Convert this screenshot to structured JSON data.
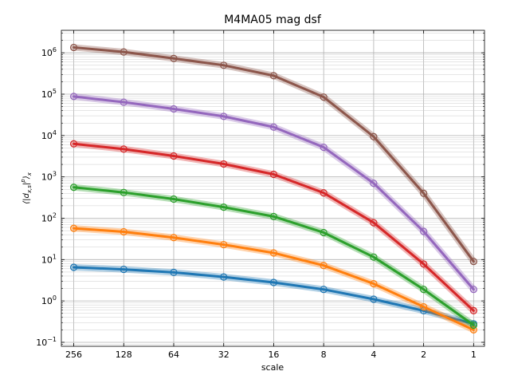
{
  "chart_data": {
    "type": "line",
    "title": "M4MA05 mag dsf",
    "xlabel": "scale",
    "ylabel": "⟨|d_{x,s}|^p⟩_x",
    "x_scale": "log",
    "x_inverted": true,
    "y_scale": "log",
    "xlim": [
      304,
      0.86
    ],
    "ylim": [
      0.08,
      3500000
    ],
    "grid": true,
    "legend": "none",
    "x_ticks": [
      {
        "value": 256,
        "label": "256"
      },
      {
        "value": 128,
        "label": "128"
      },
      {
        "value": 64,
        "label": "64"
      },
      {
        "value": 32,
        "label": "32"
      },
      {
        "value": 16,
        "label": "16"
      },
      {
        "value": 8,
        "label": "8"
      },
      {
        "value": 4,
        "label": "4"
      },
      {
        "value": 2,
        "label": "2"
      },
      {
        "value": 1,
        "label": "1"
      }
    ],
    "y_ticks": [
      {
        "value": 0.1,
        "base": "10",
        "exp": "−1"
      },
      {
        "value": 1,
        "base": "10",
        "exp": "0"
      },
      {
        "value": 10,
        "base": "10",
        "exp": "1"
      },
      {
        "value": 100,
        "base": "10",
        "exp": "2"
      },
      {
        "value": 1000,
        "base": "10",
        "exp": "3"
      },
      {
        "value": 10000,
        "base": "10",
        "exp": "4"
      },
      {
        "value": 100000,
        "base": "10",
        "exp": "5"
      },
      {
        "value": 1000000,
        "base": "10",
        "exp": "6"
      }
    ],
    "x": [
      256,
      128,
      64,
      32,
      16,
      8,
      4,
      2,
      1
    ],
    "series": [
      {
        "color": "#1f77b4",
        "values": [
          6.5,
          5.8,
          4.9,
          3.8,
          2.8,
          1.9,
          1.1,
          0.58,
          0.28
        ]
      },
      {
        "color": "#ff7f0e",
        "values": [
          57,
          47,
          34,
          23,
          14.5,
          7.2,
          2.6,
          0.72,
          0.2
        ]
      },
      {
        "color": "#2ca02c",
        "values": [
          560,
          420,
          290,
          185,
          110,
          45,
          11.5,
          1.9,
          0.26
        ]
      },
      {
        "color": "#d62728",
        "values": [
          6300,
          4700,
          3200,
          2050,
          1150,
          410,
          78,
          7.8,
          0.58
        ]
      },
      {
        "color": "#9467bd",
        "values": [
          88000,
          64000,
          44000,
          29000,
          16000,
          5200,
          700,
          48,
          1.9
        ]
      },
      {
        "color": "#8c564b",
        "values": [
          1350000,
          1050000,
          730000,
          500000,
          280000,
          85000,
          9400,
          400,
          9
        ]
      }
    ]
  }
}
